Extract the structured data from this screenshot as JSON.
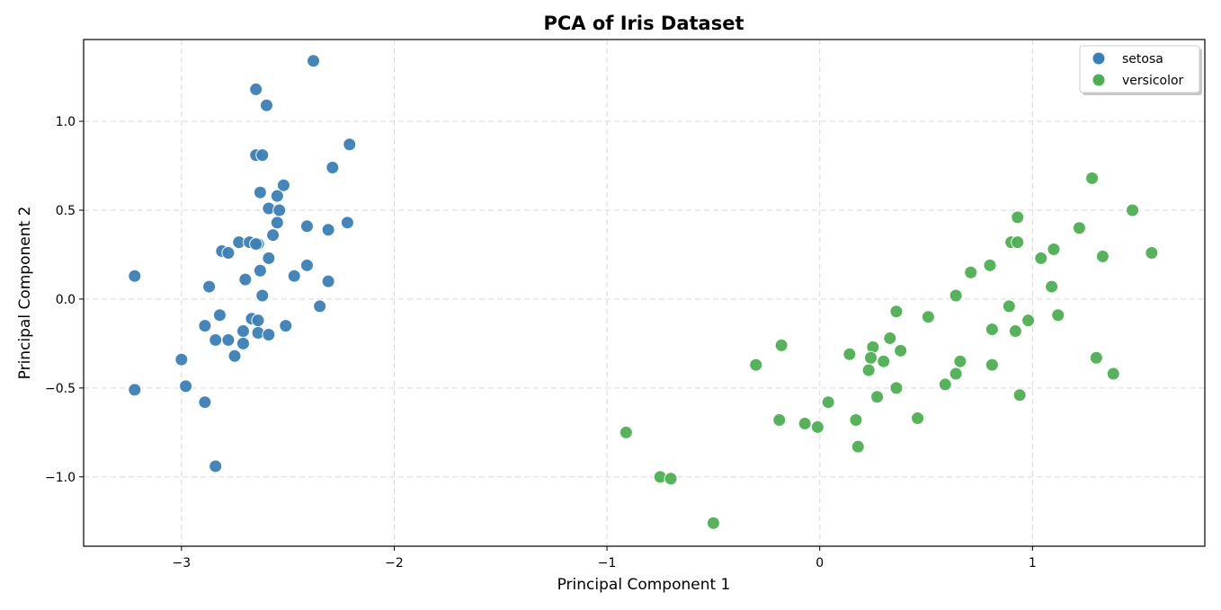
{
  "chart_data": {
    "type": "scatter",
    "title": "PCA of Iris Dataset",
    "xlabel": "Principal Component 1",
    "ylabel": "Principal Component 2",
    "xlim": [
      -3.46,
      1.81
    ],
    "ylim": [
      -1.39,
      1.46
    ],
    "xticks": [
      -3,
      -2,
      -1,
      0,
      1
    ],
    "xtick_labels": [
      "−3",
      "−2",
      "−1",
      "0",
      "1"
    ],
    "yticks": [
      -1.0,
      -0.5,
      0.0,
      0.5,
      1.0
    ],
    "ytick_labels": [
      "−1.0",
      "−0.5",
      "0.0",
      "0.5",
      "1.0"
    ],
    "grid": true,
    "legend_position": "top-right",
    "series": [
      {
        "name": "setosa",
        "color": "#3a80b8",
        "points": [
          [
            -2.38,
            1.34
          ],
          [
            -2.65,
            1.18
          ],
          [
            -2.6,
            1.09
          ],
          [
            -2.65,
            0.81
          ],
          [
            -2.62,
            0.81
          ],
          [
            -2.21,
            0.87
          ],
          [
            -2.29,
            0.74
          ],
          [
            -2.52,
            0.64
          ],
          [
            -2.63,
            0.6
          ],
          [
            -2.55,
            0.58
          ],
          [
            -2.59,
            0.51
          ],
          [
            -2.54,
            0.5
          ],
          [
            -2.55,
            0.43
          ],
          [
            -2.41,
            0.41
          ],
          [
            -2.31,
            0.39
          ],
          [
            -2.22,
            0.43
          ],
          [
            -2.57,
            0.36
          ],
          [
            -2.73,
            0.32
          ],
          [
            -2.68,
            0.32
          ],
          [
            -2.64,
            0.31
          ],
          [
            -2.65,
            0.31
          ],
          [
            -2.81,
            0.27
          ],
          [
            -2.78,
            0.26
          ],
          [
            -3.22,
            0.13
          ],
          [
            -2.59,
            0.23
          ],
          [
            -2.63,
            0.16
          ],
          [
            -2.41,
            0.19
          ],
          [
            -2.47,
            0.13
          ],
          [
            -2.7,
            0.11
          ],
          [
            -2.31,
            0.1
          ],
          [
            -2.87,
            0.07
          ],
          [
            -2.62,
            0.02
          ],
          [
            -2.35,
            -0.04
          ],
          [
            -2.82,
            -0.09
          ],
          [
            -2.67,
            -0.11
          ],
          [
            -2.64,
            -0.12
          ],
          [
            -2.89,
            -0.15
          ],
          [
            -2.51,
            -0.15
          ],
          [
            -2.71,
            -0.18
          ],
          [
            -2.64,
            -0.19
          ],
          [
            -2.59,
            -0.2
          ],
          [
            -2.84,
            -0.23
          ],
          [
            -2.78,
            -0.23
          ],
          [
            -2.71,
            -0.25
          ],
          [
            -2.75,
            -0.32
          ],
          [
            -3.0,
            -0.34
          ],
          [
            -2.98,
            -0.49
          ],
          [
            -3.22,
            -0.51
          ],
          [
            -2.89,
            -0.58
          ],
          [
            -2.84,
            -0.94
          ]
        ]
      },
      {
        "name": "versicolor",
        "color": "#4caf50",
        "points": [
          [
            1.28,
            0.68
          ],
          [
            1.47,
            0.5
          ],
          [
            0.93,
            0.46
          ],
          [
            1.22,
            0.4
          ],
          [
            0.9,
            0.32
          ],
          [
            0.93,
            0.32
          ],
          [
            1.1,
            0.28
          ],
          [
            1.56,
            0.26
          ],
          [
            1.33,
            0.24
          ],
          [
            1.04,
            0.23
          ],
          [
            0.8,
            0.19
          ],
          [
            0.71,
            0.15
          ],
          [
            1.09,
            0.07
          ],
          [
            0.64,
            0.02
          ],
          [
            0.89,
            -0.04
          ],
          [
            0.36,
            -0.07
          ],
          [
            1.12,
            -0.09
          ],
          [
            0.51,
            -0.1
          ],
          [
            0.98,
            -0.12
          ],
          [
            0.81,
            -0.17
          ],
          [
            0.92,
            -0.18
          ],
          [
            0.33,
            -0.22
          ],
          [
            -0.18,
            -0.26
          ],
          [
            0.25,
            -0.27
          ],
          [
            0.38,
            -0.29
          ],
          [
            0.14,
            -0.31
          ],
          [
            0.24,
            -0.33
          ],
          [
            0.3,
            -0.35
          ],
          [
            0.66,
            -0.35
          ],
          [
            1.3,
            -0.33
          ],
          [
            -0.3,
            -0.37
          ],
          [
            0.81,
            -0.37
          ],
          [
            0.23,
            -0.4
          ],
          [
            0.64,
            -0.42
          ],
          [
            1.38,
            -0.42
          ],
          [
            0.59,
            -0.48
          ],
          [
            0.36,
            -0.5
          ],
          [
            0.27,
            -0.55
          ],
          [
            0.94,
            -0.54
          ],
          [
            0.04,
            -0.58
          ],
          [
            0.46,
            -0.67
          ],
          [
            -0.19,
            -0.68
          ],
          [
            0.17,
            -0.68
          ],
          [
            -0.07,
            -0.7
          ],
          [
            -0.01,
            -0.72
          ],
          [
            -0.91,
            -0.75
          ],
          [
            0.18,
            -0.83
          ],
          [
            -0.75,
            -1.0
          ],
          [
            -0.7,
            -1.01
          ],
          [
            -0.5,
            -1.26
          ]
        ]
      }
    ]
  }
}
